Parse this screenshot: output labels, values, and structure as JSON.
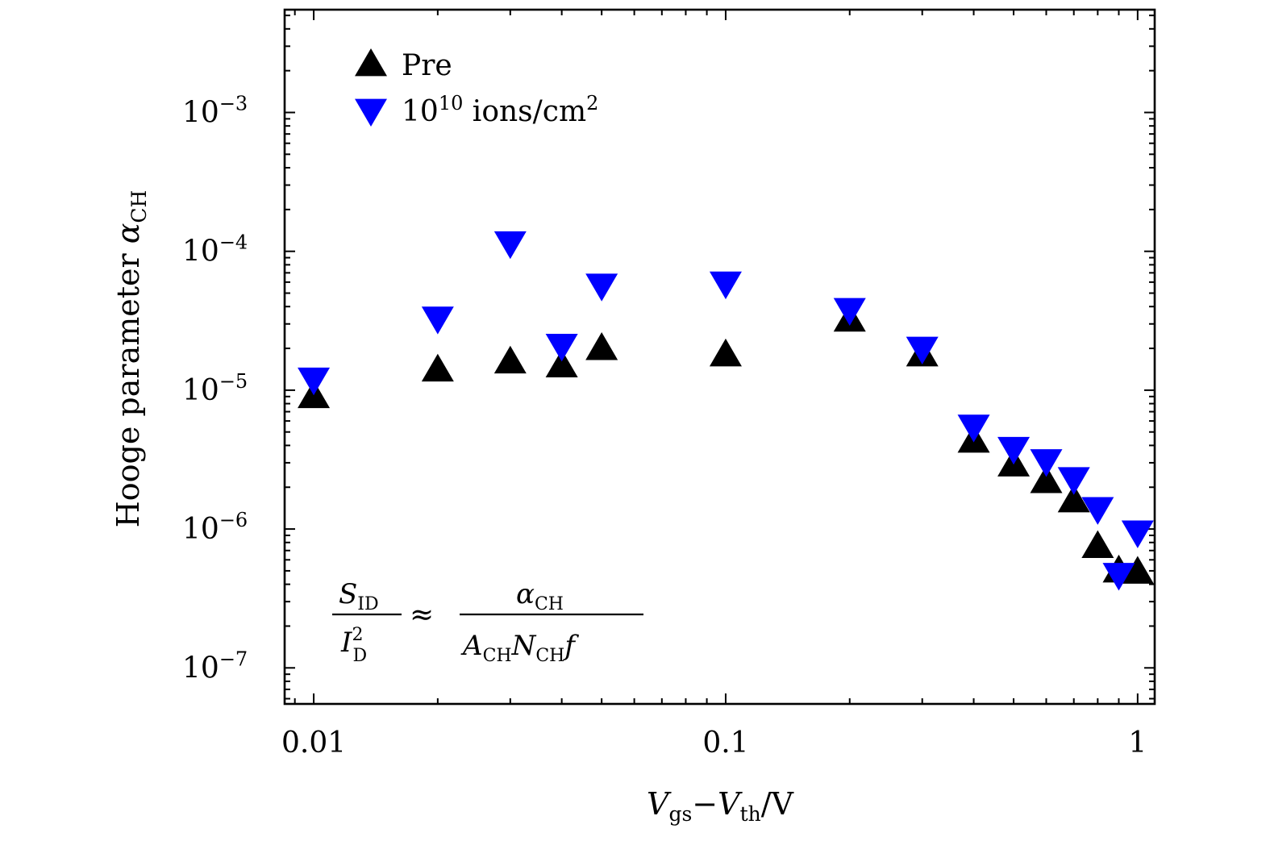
{
  "chart_data": {
    "type": "scatter",
    "x_scale": "log",
    "y_scale": "log",
    "xlim": [
      0.0085,
      1.1
    ],
    "ylim": [
      5.5e-08,
      0.0055
    ],
    "xlabel": {
      "v1": "V",
      "v1_sub": "gs",
      "dash": "−",
      "v2": "V",
      "v2_sub": "th",
      "unit": "/V"
    },
    "ylabel": {
      "text": "Hooge parameter ",
      "alpha": "α",
      "alpha_sub": "CH"
    },
    "x_ticks": [
      {
        "value": 0.01,
        "label": "0.01"
      },
      {
        "value": 0.1,
        "label": "0.1"
      },
      {
        "value": 1,
        "label": "1"
      }
    ],
    "y_ticks": [
      {
        "value": 1e-07,
        "base": "10",
        "exp": "−7"
      },
      {
        "value": 1e-06,
        "base": "10",
        "exp": "−6"
      },
      {
        "value": 1e-05,
        "base": "10",
        "exp": "−5"
      },
      {
        "value": 0.0001,
        "base": "10",
        "exp": "−4"
      },
      {
        "value": 0.001,
        "base": "10",
        "exp": "−3"
      }
    ],
    "legend": {
      "position": "top-left",
      "entries": [
        {
          "series": "pre",
          "text": "Pre",
          "sup": ""
        },
        {
          "series": "irr",
          "text": "10",
          "sup": "10",
          "tail": " ions/cm",
          "tail_sup": "2"
        }
      ]
    },
    "series": [
      {
        "key": "pre",
        "name": "Pre",
        "marker": "triangle-up",
        "color": "#000000",
        "x": [
          0.01,
          0.02,
          0.03,
          0.04,
          0.05,
          0.1,
          0.2,
          0.3,
          0.4,
          0.5,
          0.6,
          0.7,
          0.8,
          0.9,
          1.0
        ],
        "y": [
          9e-06,
          1.4e-05,
          1.6e-05,
          1.5e-05,
          2e-05,
          1.8e-05,
          3.2e-05,
          1.8e-05,
          4.3e-06,
          2.9e-06,
          2.2e-06,
          1.6e-06,
          7.5e-07,
          5e-07,
          4.9e-07
        ]
      },
      {
        "key": "irr",
        "name": "10^10 ions/cm^2",
        "marker": "triangle-down",
        "color": "#0000ff",
        "x": [
          0.01,
          0.02,
          0.03,
          0.04,
          0.05,
          0.1,
          0.2,
          0.3,
          0.4,
          0.5,
          0.6,
          0.7,
          0.8,
          0.9,
          1.0
        ],
        "y": [
          1.2e-05,
          3.3e-05,
          0.000115,
          2.1e-05,
          5.7e-05,
          5.9e-05,
          3.8e-05,
          2e-05,
          5.5e-06,
          3.8e-06,
          3.1e-06,
          2.3e-06,
          1.4e-06,
          4.7e-07,
          9.5e-07
        ]
      }
    ],
    "annotation": {
      "lhs_num": "S",
      "lhs_num_sub": "ID",
      "lhs_den": "I",
      "lhs_den_sup": "2",
      "lhs_den_sub": "D",
      "approx": "≈",
      "rhs_num": "α",
      "rhs_num_sub": "CH",
      "rhs_den_a": "A",
      "rhs_den_a_sub": "CH",
      "rhs_den_n": "N",
      "rhs_den_n_sub": "CH",
      "rhs_den_f": "f"
    }
  }
}
